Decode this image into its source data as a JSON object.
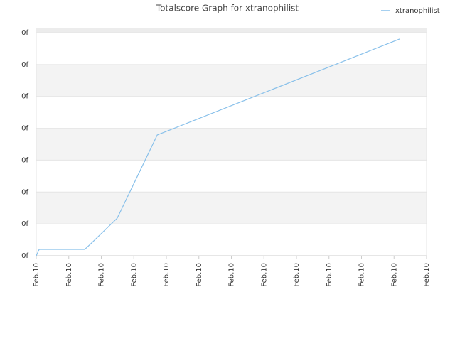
{
  "chart_data": {
    "type": "line",
    "title": "Totalscore Graph for xtranophilist",
    "x": [
      0,
      0.09,
      1.49,
      1.68,
      2.49,
      3.72,
      11.17
    ],
    "series": [
      {
        "name": "xtranophilist",
        "color": "#88c0ea",
        "values": [
          0,
          0.2,
          0.2,
          0.38,
          1.18,
          3.79,
          6.8
        ]
      }
    ],
    "xlim": [
      0,
      12
    ],
    "xticks": [
      {
        "value": 0,
        "label": "Feb.10"
      },
      {
        "value": 1,
        "label": "Feb.10"
      },
      {
        "value": 2,
        "label": "Feb.10"
      },
      {
        "value": 3,
        "label": "Feb.10"
      },
      {
        "value": 4,
        "label": "Feb.10"
      },
      {
        "value": 5,
        "label": "Feb.10"
      },
      {
        "value": 6,
        "label": "Feb.10"
      },
      {
        "value": 7,
        "label": "Feb.10"
      },
      {
        "value": 8,
        "label": "Feb.10"
      },
      {
        "value": 9,
        "label": "Feb.10"
      },
      {
        "value": 10,
        "label": "Feb.10"
      },
      {
        "value": 11,
        "label": "Feb.10"
      },
      {
        "value": 12,
        "label": "Feb.10"
      }
    ],
    "ylim": [
      0,
      7
    ],
    "yticks": [
      {
        "value": 0,
        "label": "0f"
      },
      {
        "value": 1,
        "label": "0f"
      },
      {
        "value": 2,
        "label": "0f"
      },
      {
        "value": 3,
        "label": "0f"
      },
      {
        "value": 4,
        "label": "0f"
      },
      {
        "value": 5,
        "label": "0f"
      },
      {
        "value": 6,
        "label": "0f"
      },
      {
        "value": 7,
        "label": "0f"
      }
    ],
    "grid": true,
    "legend": "top-right"
  }
}
